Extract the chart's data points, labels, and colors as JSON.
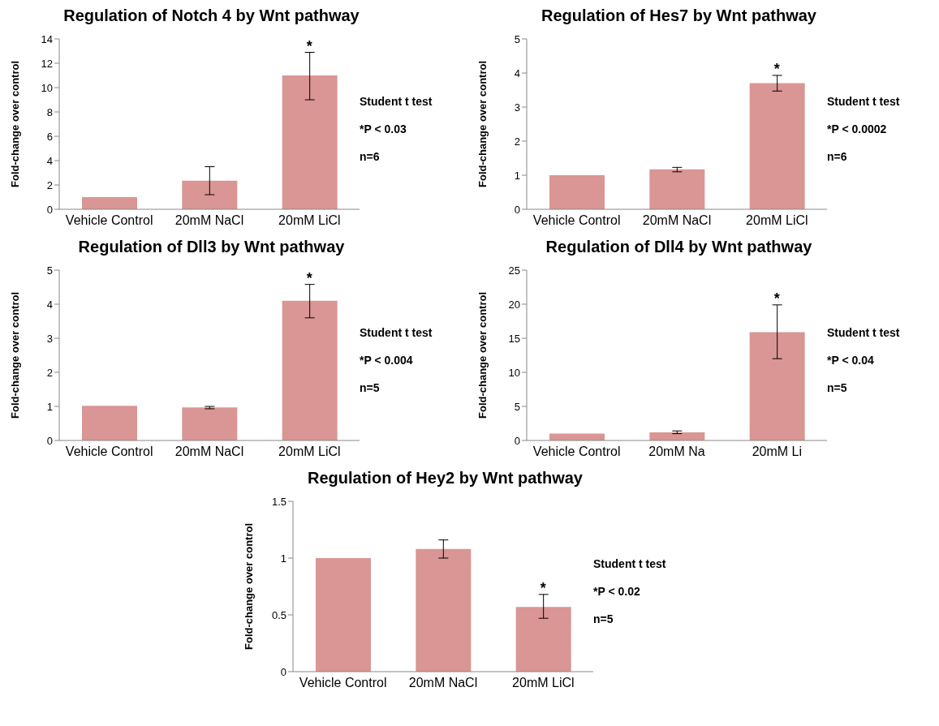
{
  "chart_data": [
    {
      "type": "bar",
      "title": "Regulation of Notch 4 by Wnt pathway",
      "ylabel": "Fold-change over control",
      "categories": [
        "Vehicle Control",
        "20mM NaCl",
        "20mM LiCl"
      ],
      "values": [
        1,
        2.35,
        11
      ],
      "errors": [
        null,
        [
          1.2,
          3.5
        ],
        [
          9,
          12.9
        ]
      ],
      "color": "#d99694",
      "ylim": [
        0,
        14
      ],
      "yticks": [
        0,
        2,
        4,
        6,
        8,
        10,
        12,
        14
      ],
      "grid": false,
      "annotations": [
        {
          "text": "*",
          "x": "20mM LiCl",
          "y": 12.9
        },
        "Student t test",
        "*P < 0.03",
        "n=6"
      ]
    },
    {
      "type": "bar",
      "title": "Regulation of Hes7 by Wnt pathway",
      "ylabel": "Fold-change over control",
      "categories": [
        "Vehicle Control",
        "20mM NaCl",
        "20mM LiCl"
      ],
      "values": [
        1,
        1.17,
        3.7
      ],
      "errors": [
        null,
        [
          1.1,
          1.23
        ],
        [
          3.47,
          3.93
        ]
      ],
      "color": "#d99694",
      "ylim": [
        0,
        5
      ],
      "yticks": [
        0,
        1,
        2,
        3,
        4,
        5
      ],
      "grid": false,
      "annotations": [
        {
          "text": "*",
          "x": "20mM LiCl",
          "y": 3.93
        },
        "Student t test",
        "*P < 0.0002",
        "n=6"
      ]
    },
    {
      "type": "bar",
      "title": "Regulation of Dll3 by Wnt pathway",
      "ylabel": "Fold-change over control",
      "categories": [
        "Vehicle Control",
        "20mM NaCl",
        "20mM LiCl"
      ],
      "values": [
        1.02,
        0.97,
        4.1
      ],
      "errors": [
        null,
        [
          0.93,
          1.0
        ],
        [
          3.6,
          4.58
        ]
      ],
      "color": "#d99694",
      "ylim": [
        0,
        5
      ],
      "yticks": [
        0,
        1,
        2,
        3,
        4,
        5
      ],
      "grid": false,
      "annotations": [
        {
          "text": "*",
          "x": "20mM LiCl",
          "y": 4.58
        },
        "Student t test",
        "*P < 0.004",
        "n=5"
      ]
    },
    {
      "type": "bar",
      "title": "Regulation of Dll4 by Wnt pathway",
      "ylabel": "Fold-change over control",
      "categories": [
        "Vehicle Control",
        "20mM Na",
        "20mM Li"
      ],
      "values": [
        1,
        1.2,
        15.9
      ],
      "errors": [
        null,
        [
          1.0,
          1.4
        ],
        [
          12,
          19.9
        ]
      ],
      "color": "#d99694",
      "ylim": [
        0,
        25
      ],
      "yticks": [
        0,
        5,
        10,
        15,
        20,
        25
      ],
      "grid": false,
      "annotations": [
        {
          "text": "*",
          "x": "20mM Li",
          "y": 19.9
        },
        "Student t test",
        "*P < 0.04",
        "n=5"
      ]
    },
    {
      "type": "bar",
      "title": "Regulation of Hey2 by Wnt pathway",
      "ylabel": "Fold-change over control",
      "categories": [
        "Vehicle Control",
        "20mM NaCl",
        "20mM LiCl"
      ],
      "values": [
        1,
        1.08,
        0.57
      ],
      "errors": [
        null,
        [
          1.0,
          1.16
        ],
        [
          0.47,
          0.68
        ]
      ],
      "color": "#d99694",
      "ylim": [
        0,
        1.5
      ],
      "yticks": [
        0,
        0.5,
        1,
        1.5
      ],
      "grid": false,
      "annotations": [
        {
          "text": "*",
          "x": "20mM LiCl",
          "y": 0.68
        },
        "Student t test",
        "*P < 0.02",
        "n=5"
      ]
    }
  ]
}
